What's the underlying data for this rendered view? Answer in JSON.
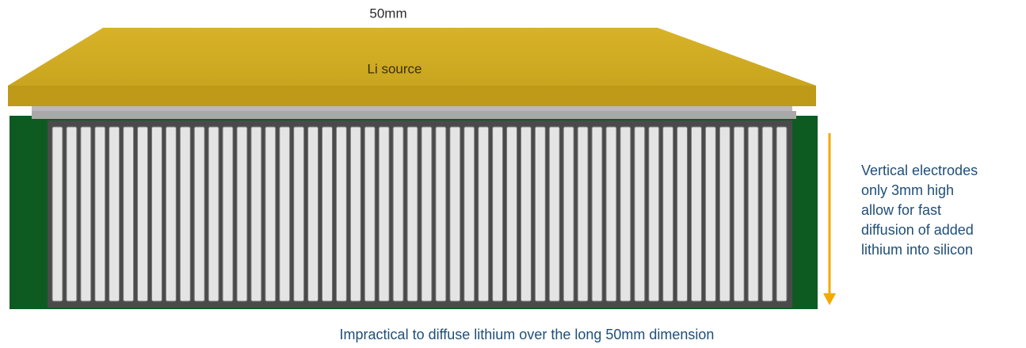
{
  "top_label": "50mm",
  "source_label": "Li source",
  "side_note": {
    "lines": [
      "Vertical electrodes",
      "only 3mm  high",
      "allow for fast",
      "diffusion of added",
      "lithium into silicon"
    ]
  },
  "bottom_note": "Impractical to diffuse lithium over the long 50mm  dimension"
}
